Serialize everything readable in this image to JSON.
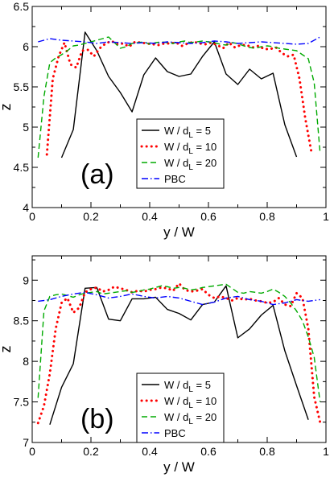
{
  "chart_data": [
    {
      "type": "line",
      "panel_label": "(a)",
      "xlabel": "y / W",
      "ylabel": "z",
      "xlim": [
        0,
        1
      ],
      "ylim": [
        4,
        6.5
      ],
      "xticks": [
        0,
        0.2,
        0.4,
        0.6,
        0.8,
        1
      ],
      "xtick_labels": [
        "0",
        "0.2",
        "0.4",
        "0.6",
        "0.8",
        "1"
      ],
      "yticks": [
        4,
        4.5,
        5,
        5.5,
        6,
        6.5
      ],
      "ytick_labels": [
        "4",
        "4.5",
        "5",
        "5.5",
        "6",
        "6.5"
      ],
      "legend_position": "bottom-center",
      "series": [
        {
          "key": "s5",
          "label_pre": "W / d",
          "label_sub": "L",
          "label_post": " = 5",
          "color": "#000000",
          "style": "solid",
          "x": [
            0.1,
            0.14,
            0.18,
            0.22,
            0.26,
            0.3,
            0.34,
            0.38,
            0.42,
            0.46,
            0.5,
            0.54,
            0.58,
            0.62,
            0.66,
            0.7,
            0.74,
            0.78,
            0.82,
            0.86,
            0.9
          ],
          "y": [
            4.62,
            4.97,
            6.18,
            5.95,
            5.63,
            5.43,
            5.19,
            5.65,
            5.86,
            5.69,
            5.63,
            5.66,
            5.88,
            6.06,
            5.66,
            5.53,
            5.72,
            5.6,
            5.67,
            5.03,
            4.63
          ]
        },
        {
          "key": "s10",
          "label_pre": "W / d",
          "label_sub": "L",
          "label_post": " = 10",
          "color": "#ff0000",
          "style": "dotted",
          "x": [
            0.05,
            0.07,
            0.09,
            0.11,
            0.13,
            0.15,
            0.17,
            0.19,
            0.21,
            0.23,
            0.25,
            0.27,
            0.29,
            0.31,
            0.33,
            0.35,
            0.37,
            0.39,
            0.41,
            0.43,
            0.45,
            0.47,
            0.49,
            0.51,
            0.53,
            0.55,
            0.57,
            0.59,
            0.61,
            0.63,
            0.65,
            0.67,
            0.69,
            0.71,
            0.73,
            0.75,
            0.77,
            0.79,
            0.81,
            0.83,
            0.85,
            0.87,
            0.89,
            0.91,
            0.93,
            0.95
          ],
          "y": [
            4.66,
            5.6,
            5.88,
            6.05,
            5.78,
            5.74,
            5.95,
            5.96,
            5.88,
            5.98,
            6.04,
            6.07,
            6.03,
            6.04,
            6.0,
            6.06,
            6.05,
            6.04,
            6.03,
            6.02,
            6.04,
            6.04,
            6.05,
            6.01,
            6.04,
            6.06,
            6.04,
            6.03,
            6.05,
            6.02,
            5.98,
            6.05,
            5.99,
            6.02,
            6.02,
            5.99,
            6.01,
            5.97,
            5.97,
            5.99,
            5.92,
            5.88,
            5.9,
            5.6,
            5.1,
            4.7
          ]
        },
        {
          "key": "s20",
          "label_pre": "W / d",
          "label_sub": "L",
          "label_post": " = 20",
          "color": "#00aa00",
          "style": "dashed",
          "x": [
            0.02,
            0.04,
            0.06,
            0.08,
            0.1,
            0.12,
            0.14,
            0.16,
            0.18,
            0.2,
            0.22,
            0.24,
            0.26,
            0.28,
            0.3,
            0.32,
            0.34,
            0.36,
            0.38,
            0.4,
            0.42,
            0.44,
            0.46,
            0.48,
            0.5,
            0.52,
            0.54,
            0.56,
            0.58,
            0.6,
            0.62,
            0.64,
            0.66,
            0.68,
            0.7,
            0.72,
            0.74,
            0.76,
            0.78,
            0.8,
            0.82,
            0.84,
            0.86,
            0.88,
            0.9,
            0.92,
            0.94,
            0.96,
            0.98
          ],
          "y": [
            4.62,
            5.38,
            5.8,
            5.86,
            5.9,
            5.95,
            6.01,
            6.02,
            6.04,
            6.06,
            6.08,
            6.1,
            6.12,
            6.05,
            5.98,
            6.0,
            6.04,
            6.05,
            6.06,
            6.03,
            6.05,
            6.06,
            6.05,
            6.04,
            6.06,
            6.07,
            6.05,
            6.06,
            6.07,
            6.06,
            6.05,
            6.03,
            6.02,
            6.05,
            6.04,
            6.01,
            5.99,
            5.98,
            6.0,
            6.01,
            6.0,
            5.98,
            5.97,
            5.96,
            5.95,
            5.9,
            5.85,
            5.55,
            4.68
          ]
        },
        {
          "key": "pbc",
          "label_pre": "PBC",
          "label_sub": "",
          "label_post": "",
          "color": "#0000ff",
          "style": "dashdot",
          "x": [
            0.02,
            0.06,
            0.1,
            0.14,
            0.18,
            0.22,
            0.26,
            0.3,
            0.34,
            0.38,
            0.42,
            0.46,
            0.5,
            0.54,
            0.58,
            0.62,
            0.66,
            0.7,
            0.74,
            0.78,
            0.82,
            0.86,
            0.9,
            0.94,
            0.98
          ],
          "y": [
            6.06,
            6.1,
            6.08,
            6.07,
            6.06,
            6.04,
            6.06,
            6.05,
            6.04,
            6.05,
            6.04,
            6.06,
            6.05,
            6.04,
            6.05,
            6.07,
            6.06,
            6.04,
            6.05,
            6.06,
            6.05,
            6.04,
            6.03,
            6.04,
            6.12
          ]
        }
      ]
    },
    {
      "type": "line",
      "panel_label": "(b)",
      "xlabel": "y / W",
      "ylabel": "z",
      "xlim": [
        0,
        1
      ],
      "ylim": [
        7,
        9.3
      ],
      "xticks": [
        0,
        0.2,
        0.4,
        0.6,
        0.8,
        1
      ],
      "xtick_labels": [
        "0",
        "0.2",
        "0.4",
        "0.6",
        "0.8",
        "1"
      ],
      "yticks": [
        7,
        7.5,
        8,
        8.5,
        9
      ],
      "ytick_labels": [
        "7",
        "7.5",
        "8",
        "8.5",
        "9"
      ],
      "legend_position": "bottom-center",
      "series": [
        {
          "key": "s5",
          "label_pre": "W / d",
          "label_sub": "L",
          "label_post": " = 5",
          "color": "#000000",
          "style": "solid",
          "x": [
            0.06,
            0.1,
            0.14,
            0.18,
            0.22,
            0.26,
            0.3,
            0.34,
            0.38,
            0.42,
            0.46,
            0.5,
            0.54,
            0.58,
            0.62,
            0.66,
            0.7,
            0.74,
            0.78,
            0.82,
            0.86,
            0.9,
            0.94
          ],
          "y": [
            7.22,
            7.68,
            7.97,
            8.9,
            8.91,
            8.52,
            8.5,
            8.77,
            8.77,
            8.79,
            8.64,
            8.59,
            8.51,
            8.7,
            8.73,
            8.93,
            8.29,
            8.4,
            8.57,
            8.69,
            8.13,
            7.7,
            7.28
          ]
        },
        {
          "key": "s10",
          "label_pre": "W / d",
          "label_sub": "L",
          "label_post": " = 10",
          "color": "#ff0000",
          "style": "dotted",
          "x": [
            0.02,
            0.04,
            0.06,
            0.08,
            0.1,
            0.12,
            0.14,
            0.16,
            0.18,
            0.2,
            0.22,
            0.24,
            0.26,
            0.28,
            0.3,
            0.32,
            0.34,
            0.36,
            0.38,
            0.4,
            0.42,
            0.44,
            0.46,
            0.48,
            0.5,
            0.52,
            0.54,
            0.56,
            0.58,
            0.6,
            0.62,
            0.64,
            0.66,
            0.68,
            0.7,
            0.72,
            0.74,
            0.76,
            0.78,
            0.8,
            0.82,
            0.84,
            0.86,
            0.88,
            0.9,
            0.92,
            0.94,
            0.96,
            0.98
          ],
          "y": [
            7.24,
            7.45,
            7.85,
            8.4,
            8.72,
            8.78,
            8.6,
            8.66,
            8.85,
            8.89,
            8.91,
            8.86,
            8.88,
            8.92,
            8.9,
            8.88,
            8.85,
            8.87,
            8.86,
            8.88,
            8.89,
            8.91,
            8.9,
            8.87,
            8.96,
            8.88,
            8.86,
            8.87,
            8.89,
            8.82,
            8.78,
            8.8,
            8.78,
            8.75,
            8.78,
            8.76,
            8.77,
            8.75,
            8.74,
            8.72,
            8.73,
            8.78,
            8.7,
            8.68,
            8.84,
            8.78,
            8.4,
            7.56,
            7.25
          ]
        },
        {
          "key": "s20",
          "label_pre": "W / d",
          "label_sub": "L",
          "label_post": " = 20",
          "color": "#00aa00",
          "style": "dashed",
          "x": [
            0.02,
            0.04,
            0.06,
            0.08,
            0.1,
            0.12,
            0.14,
            0.16,
            0.18,
            0.2,
            0.22,
            0.24,
            0.26,
            0.28,
            0.3,
            0.32,
            0.34,
            0.36,
            0.38,
            0.4,
            0.42,
            0.44,
            0.46,
            0.48,
            0.5,
            0.52,
            0.54,
            0.56,
            0.58,
            0.6,
            0.62,
            0.64,
            0.66,
            0.68,
            0.7,
            0.72,
            0.74,
            0.76,
            0.78,
            0.8,
            0.82,
            0.84,
            0.86,
            0.88,
            0.9,
            0.92,
            0.94,
            0.96,
            0.98
          ],
          "y": [
            7.55,
            8.62,
            8.8,
            8.82,
            8.83,
            8.81,
            8.79,
            8.82,
            8.84,
            8.85,
            8.86,
            8.83,
            8.84,
            8.85,
            8.86,
            8.87,
            8.85,
            8.86,
            8.88,
            8.89,
            8.91,
            8.93,
            8.92,
            8.9,
            8.91,
            8.9,
            8.88,
            8.89,
            8.91,
            8.92,
            8.93,
            8.94,
            8.95,
            8.9,
            8.85,
            8.84,
            8.86,
            8.85,
            8.84,
            8.86,
            8.89,
            8.85,
            8.8,
            8.72,
            8.62,
            8.5,
            8.3,
            8.05,
            7.5
          ]
        },
        {
          "key": "pbc",
          "label_pre": "PBC",
          "label_sub": "",
          "label_post": "",
          "color": "#0000ff",
          "style": "dashdot",
          "x": [
            0.02,
            0.06,
            0.1,
            0.14,
            0.18,
            0.22,
            0.26,
            0.3,
            0.34,
            0.38,
            0.42,
            0.46,
            0.5,
            0.54,
            0.58,
            0.62,
            0.66,
            0.7,
            0.74,
            0.78,
            0.82,
            0.86,
            0.9,
            0.94,
            0.98
          ],
          "y": [
            8.74,
            8.76,
            8.8,
            8.83,
            8.85,
            8.82,
            8.78,
            8.8,
            8.83,
            8.8,
            8.78,
            8.8,
            8.78,
            8.74,
            8.7,
            8.73,
            8.78,
            8.8,
            8.76,
            8.74,
            8.7,
            8.72,
            8.76,
            8.74,
            8.76
          ]
        }
      ]
    }
  ]
}
